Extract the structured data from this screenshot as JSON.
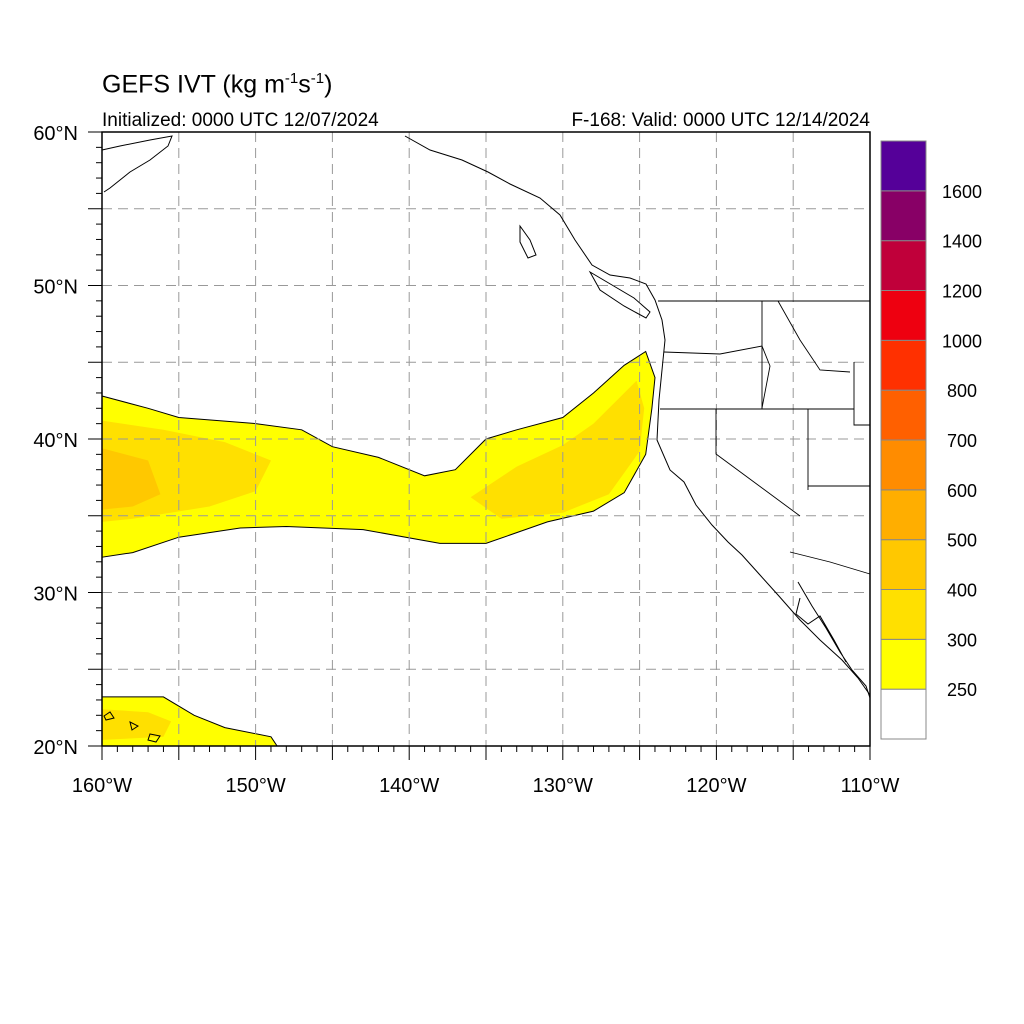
{
  "header": {
    "title_main": "GEFS IVT (kg m",
    "title_sup1": "-1",
    "title_mid": "s",
    "title_sup2": "-1",
    "title_end": ")",
    "init_label": "Initialized: 0000 UTC 12/07/2024",
    "valid_label": "F-168: Valid: 0000 UTC 12/14/2024"
  },
  "map": {
    "region": "NE Pacific / US West Coast",
    "lon_range": [
      -160,
      -110
    ],
    "lat_range": [
      20,
      60
    ],
    "grid": true,
    "lat_ticks": [
      {
        "value": 60,
        "label": "60°N"
      },
      {
        "value": 50,
        "label": "50°N"
      },
      {
        "value": 40,
        "label": "40°N"
      },
      {
        "value": 30,
        "label": "30°N"
      },
      {
        "value": 20,
        "label": "20°N"
      }
    ],
    "lon_ticks": [
      {
        "value": -160,
        "label": "160°W"
      },
      {
        "value": -150,
        "label": "150°W"
      },
      {
        "value": -140,
        "label": "140°W"
      },
      {
        "value": -130,
        "label": "130°W"
      },
      {
        "value": -120,
        "label": "120°W"
      },
      {
        "value": -110,
        "label": "110°W"
      }
    ],
    "ivt_field": [
      {
        "level": 250,
        "color": "#ffff00",
        "polygon": [
          [
            -160,
            42.8
          ],
          [
            -157,
            42
          ],
          [
            -155,
            41.4
          ],
          [
            -150,
            41
          ],
          [
            -147,
            40.6
          ],
          [
            -145,
            39.5
          ],
          [
            -142,
            38.8
          ],
          [
            -139,
            37.6
          ],
          [
            -137,
            38
          ],
          [
            -135,
            40
          ],
          [
            -133,
            40.6
          ],
          [
            -130,
            41.4
          ],
          [
            -128,
            43
          ],
          [
            -126,
            44.8
          ],
          [
            -124.6,
            45.7
          ],
          [
            -124,
            44
          ],
          [
            -124.2,
            42
          ],
          [
            -124.6,
            39
          ],
          [
            -126,
            36.5
          ],
          [
            -128,
            35.3
          ],
          [
            -131,
            34.6
          ],
          [
            -135,
            33.2
          ],
          [
            -138,
            33.2
          ],
          [
            -143,
            34.1
          ],
          [
            -148,
            34.3
          ],
          [
            -151,
            34.2
          ],
          [
            -155,
            33.6
          ],
          [
            -158,
            32.6
          ],
          [
            -160,
            32.3
          ]
        ]
      },
      {
        "level": 300,
        "color": "#ffe000",
        "polygon": [
          [
            -160,
            41.2
          ],
          [
            -156,
            40.6
          ],
          [
            -152,
            39.8
          ],
          [
            -149,
            38.6
          ],
          [
            -150,
            36.6
          ],
          [
            -153,
            35.6
          ],
          [
            -158,
            34.8
          ],
          [
            -160,
            34.6
          ]
        ]
      },
      {
        "level": 300,
        "color": "#ffe000",
        "polygon": [
          [
            -136,
            36.2
          ],
          [
            -133,
            38.2
          ],
          [
            -130,
            39.6
          ],
          [
            -128,
            41
          ],
          [
            -126.4,
            42.6
          ],
          [
            -125.2,
            43.8
          ],
          [
            -124.7,
            42
          ],
          [
            -125,
            39.2
          ],
          [
            -127,
            36.4
          ],
          [
            -130,
            35.2
          ],
          [
            -134,
            34.8
          ]
        ]
      },
      {
        "level": 400,
        "color": "#ffc800",
        "polygon": [
          [
            -160,
            39.4
          ],
          [
            -157,
            38.6
          ],
          [
            -156.2,
            36.4
          ],
          [
            -158,
            35.6
          ],
          [
            -160,
            35.4
          ]
        ]
      },
      {
        "level": 250,
        "color": "#ffff00",
        "polygon": [
          [
            -160,
            23.2
          ],
          [
            -156,
            23.2
          ],
          [
            -154,
            22
          ],
          [
            -152,
            21.2
          ],
          [
            -149,
            20.6
          ],
          [
            -148.6,
            20
          ],
          [
            -160,
            20
          ]
        ]
      },
      {
        "level": 300,
        "color": "#ffe000",
        "polygon": [
          [
            -160,
            22.4
          ],
          [
            -157,
            22.2
          ],
          [
            -155.5,
            21.6
          ],
          [
            -156,
            20.6
          ],
          [
            -160,
            20.4
          ]
        ]
      }
    ]
  },
  "colorbar": {
    "levels": [
      "250",
      "300",
      "400",
      "500",
      "600",
      "700",
      "800",
      "1000",
      "1200",
      "1400",
      "1600"
    ],
    "colors": [
      "#ffffff",
      "#ffff00",
      "#ffe000",
      "#ffc800",
      "#ffae00",
      "#ff8c00",
      "#ff6000",
      "#ff3000",
      "#ee0010",
      "#c0003a",
      "#880066",
      "#550099"
    ]
  }
}
